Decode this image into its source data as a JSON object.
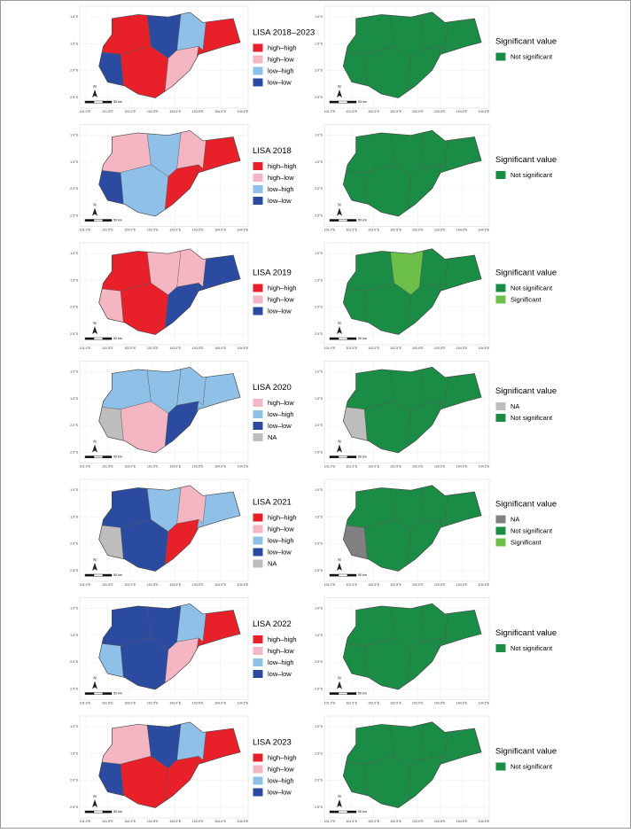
{
  "x_ticks": [
    "101.0°E",
    "101.5°E",
    "102.0°E",
    "102.5°E",
    "103.0°E",
    "103.5°E",
    "104.0°E",
    "104.5°E"
  ],
  "y_ticks": [
    "1.0°S",
    "1.5°S",
    "2.0°S",
    "2.5°S"
  ],
  "north_label": "N",
  "scale_label": "50 km",
  "rows": [
    {
      "left": {
        "title": "LISA 2018–2023",
        "items": [
          {
            "label": "high–high",
            "color": "#e8202a"
          },
          {
            "label": "high–low",
            "color": "#f4b6c2"
          },
          {
            "label": "low–high",
            "color": "#8fc1e8"
          },
          {
            "label": "low–low",
            "color": "#2b4ba0"
          }
        ]
      },
      "right": {
        "title": "Significant value",
        "items": [
          {
            "label": "Not significant",
            "color": "#1a8c45"
          }
        ]
      }
    },
    {
      "left": {
        "title": "LISA 2018",
        "items": [
          {
            "label": "high–high",
            "color": "#e8202a"
          },
          {
            "label": "high–low",
            "color": "#f4b6c2"
          },
          {
            "label": "low–high",
            "color": "#8fc1e8"
          },
          {
            "label": "low–low",
            "color": "#2b4ba0"
          }
        ]
      },
      "right": {
        "title": "Significant value",
        "items": [
          {
            "label": "Not significant",
            "color": "#1a8c45"
          }
        ]
      }
    },
    {
      "left": {
        "title": "LISA 2019",
        "items": [
          {
            "label": "high–high",
            "color": "#e8202a"
          },
          {
            "label": "high–low",
            "color": "#f4b6c2"
          },
          {
            "label": "low–low",
            "color": "#2b4ba0"
          }
        ]
      },
      "right": {
        "title": "Significant value",
        "items": [
          {
            "label": "Not significant",
            "color": "#1a8c45"
          },
          {
            "label": "Significant",
            "color": "#6cc04a"
          }
        ]
      }
    },
    {
      "left": {
        "title": "LISA 2020",
        "items": [
          {
            "label": "high–low",
            "color": "#f4b6c2"
          },
          {
            "label": "low–high",
            "color": "#8fc1e8"
          },
          {
            "label": "low–low",
            "color": "#2b4ba0"
          },
          {
            "label": "NA",
            "color": "#bdbdbd"
          }
        ]
      },
      "right": {
        "title": "Significant value",
        "items": [
          {
            "label": "NA",
            "color": "#bdbdbd"
          },
          {
            "label": "Not significant",
            "color": "#1a8c45"
          }
        ]
      }
    },
    {
      "left": {
        "title": "LISA 2021",
        "items": [
          {
            "label": "high–high",
            "color": "#e8202a"
          },
          {
            "label": "high–low",
            "color": "#f4b6c2"
          },
          {
            "label": "low–high",
            "color": "#8fc1e8"
          },
          {
            "label": "low–low",
            "color": "#2b4ba0"
          },
          {
            "label": "NA",
            "color": "#bdbdbd"
          }
        ]
      },
      "right": {
        "title": "Significant value",
        "items": [
          {
            "label": "NA",
            "color": "#808080"
          },
          {
            "label": "Not significant",
            "color": "#1a8c45"
          },
          {
            "label": "Significant",
            "color": "#6cc04a"
          }
        ]
      }
    },
    {
      "left": {
        "title": "LISA 2022",
        "items": [
          {
            "label": "high–high",
            "color": "#e8202a"
          },
          {
            "label": "high–low",
            "color": "#f4b6c2"
          },
          {
            "label": "low–high",
            "color": "#8fc1e8"
          },
          {
            "label": "low–low",
            "color": "#2b4ba0"
          }
        ]
      },
      "right": {
        "title": "Significant value",
        "items": [
          {
            "label": "Not significant",
            "color": "#1a8c45"
          }
        ]
      }
    },
    {
      "left": {
        "title": "LISA 2023",
        "items": [
          {
            "label": "high–high",
            "color": "#e8202a"
          },
          {
            "label": "high–low",
            "color": "#f4b6c2"
          },
          {
            "label": "low–high",
            "color": "#8fc1e8"
          },
          {
            "label": "low–low",
            "color": "#2b4ba0"
          }
        ]
      },
      "right": {
        "title": "Significant value",
        "items": [
          {
            "label": "Not significant",
            "color": "#1a8c45"
          }
        ]
      }
    }
  ]
}
